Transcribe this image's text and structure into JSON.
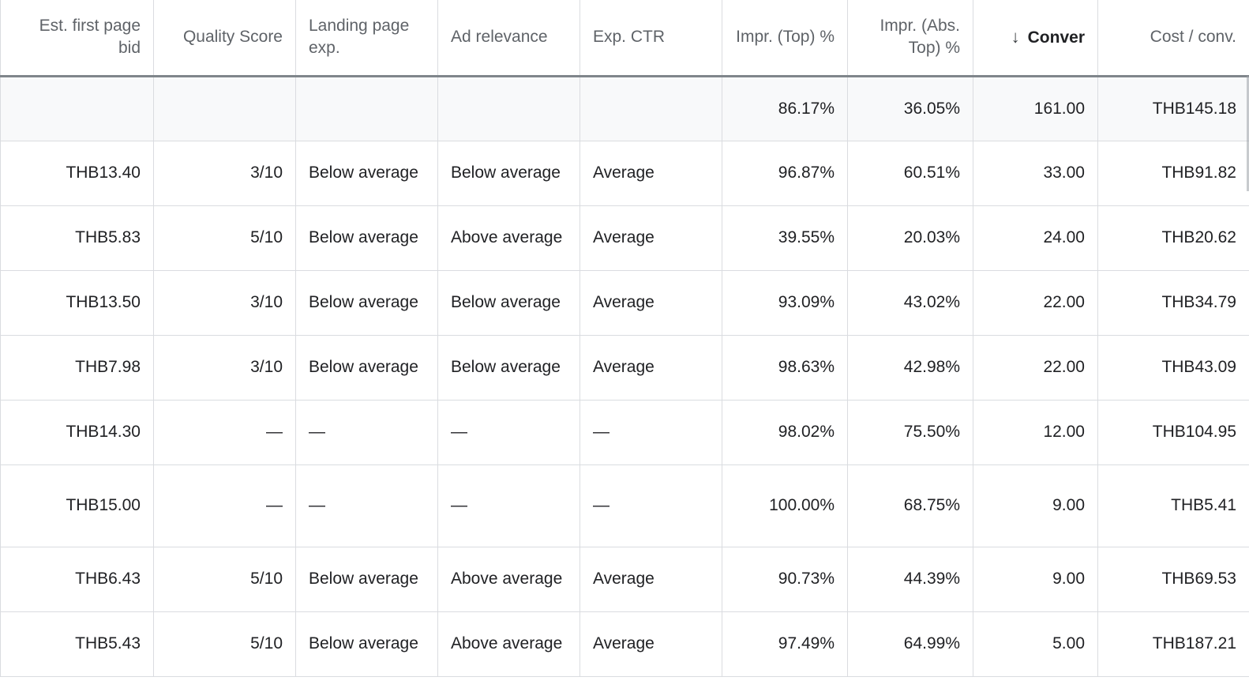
{
  "columns": [
    {
      "label": "Est. first page bid",
      "align": "right"
    },
    {
      "label": "Quality Score",
      "align": "right"
    },
    {
      "label": "Landing page exp.",
      "align": "left"
    },
    {
      "label": "Ad relevance",
      "align": "left"
    },
    {
      "label": "Exp. CTR",
      "align": "left"
    },
    {
      "label": "Impr. (Top) %",
      "align": "right"
    },
    {
      "label": "Impr. (Abs. Top) %",
      "align": "right"
    },
    {
      "label": "Conver",
      "align": "right",
      "sorted": "descending"
    },
    {
      "label": "Cost / conv.",
      "align": "right"
    }
  ],
  "total": {
    "bid": "",
    "qs": "",
    "landing": "",
    "relevance": "",
    "ctr": "",
    "top": "86.17%",
    "abs_top": "36.05%",
    "conversions": "161.00",
    "cost_conv": "THB145.18"
  },
  "rows": [
    {
      "bid": "THB13.40",
      "qs": "3/10",
      "landing": "Below average",
      "relevance": "Below average",
      "ctr": "Average",
      "top": "96.87%",
      "abs_top": "60.51%",
      "conversions": "33.00",
      "cost_conv": "THB91.82"
    },
    {
      "bid": "THB5.83",
      "qs": "5/10",
      "landing": "Below average",
      "relevance": "Above average",
      "ctr": "Average",
      "top": "39.55%",
      "abs_top": "20.03%",
      "conversions": "24.00",
      "cost_conv": "THB20.62"
    },
    {
      "bid": "THB13.50",
      "qs": "3/10",
      "landing": "Below average",
      "relevance": "Below average",
      "ctr": "Average",
      "top": "93.09%",
      "abs_top": "43.02%",
      "conversions": "22.00",
      "cost_conv": "THB34.79"
    },
    {
      "bid": "THB7.98",
      "qs": "3/10",
      "landing": "Below average",
      "relevance": "Below average",
      "ctr": "Average",
      "top": "98.63%",
      "abs_top": "42.98%",
      "conversions": "22.00",
      "cost_conv": "THB43.09"
    },
    {
      "bid": "THB14.30",
      "qs": "—",
      "landing": "—",
      "relevance": "—",
      "ctr": "—",
      "top": "98.02%",
      "abs_top": "75.50%",
      "conversions": "12.00",
      "cost_conv": "THB104.95"
    },
    {
      "bid": "THB15.00",
      "qs": "—",
      "landing": "—",
      "relevance": "—",
      "ctr": "—",
      "top": "100.00%",
      "abs_top": "68.75%",
      "conversions": "9.00",
      "cost_conv": "THB5.41"
    },
    {
      "bid": "THB6.43",
      "qs": "5/10",
      "landing": "Below average",
      "relevance": "Above average",
      "ctr": "Average",
      "top": "90.73%",
      "abs_top": "44.39%",
      "conversions": "9.00",
      "cost_conv": "THB69.53"
    },
    {
      "bid": "THB5.43",
      "qs": "5/10",
      "landing": "Below average",
      "relevance": "Above average",
      "ctr": "Average",
      "top": "97.49%",
      "abs_top": "64.99%",
      "conversions": "5.00",
      "cost_conv": "THB187.21"
    }
  ],
  "icons": {
    "sort": "arrow-down-icon"
  }
}
